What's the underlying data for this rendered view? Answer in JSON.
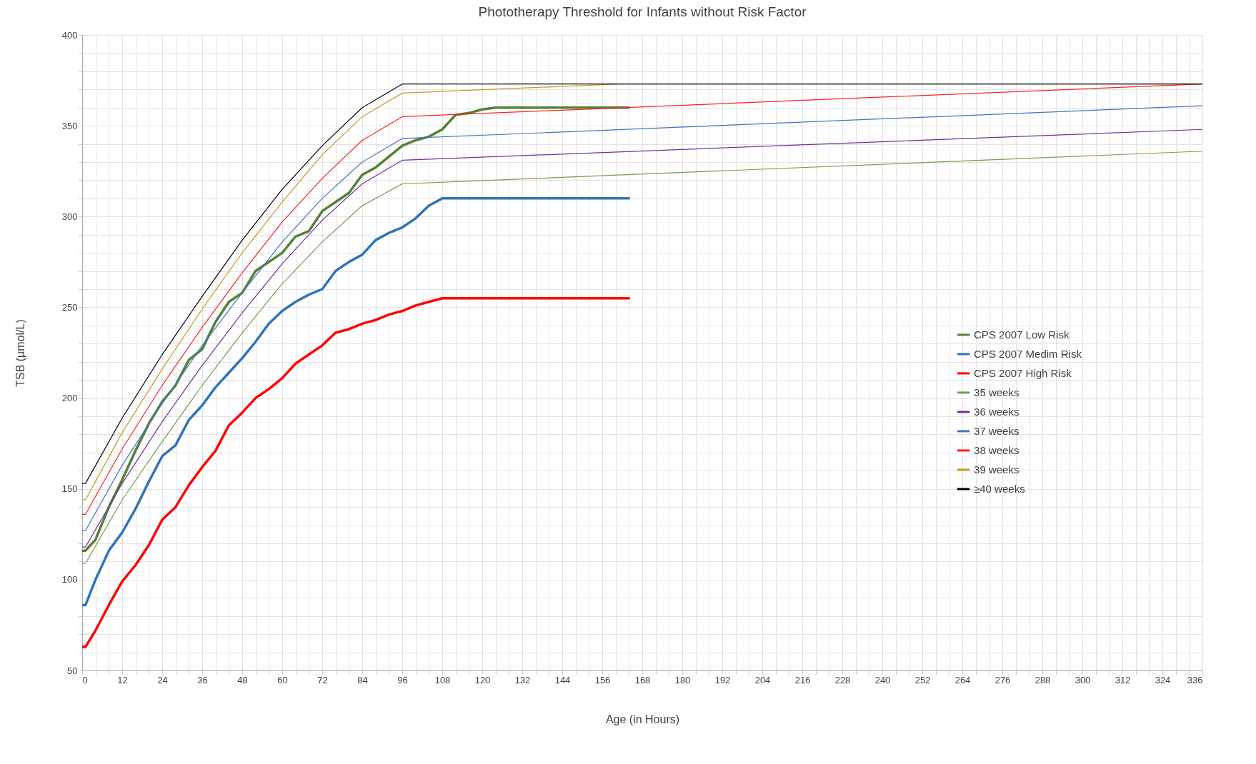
{
  "chart_data": {
    "type": "line",
    "title": "Phototherapy Threshold for Infants without Risk Factor",
    "xlabel": "Age (in Hours)",
    "ylabel": "TSB (µmol/L)",
    "grid": true,
    "legend": "right",
    "xlim": [
      0,
      336
    ],
    "ylim": [
      50,
      400
    ],
    "xticks": [
      0,
      {
        "value": 4,
        "label": null
      },
      {
        "value": 8,
        "label": null
      },
      12,
      {
        "value": 16,
        "label": null
      },
      {
        "value": 20,
        "label": null
      },
      24,
      {
        "value": 28,
        "label": null
      },
      {
        "value": 32,
        "label": null
      },
      36,
      {
        "value": 40,
        "label": null
      },
      {
        "value": 44,
        "label": null
      },
      48,
      {
        "value": 52,
        "label": null
      },
      {
        "value": 56,
        "label": null
      },
      60,
      {
        "value": 64,
        "label": null
      },
      {
        "value": 68,
        "label": null
      },
      72,
      {
        "value": 76,
        "label": null
      },
      {
        "value": 80,
        "label": null
      },
      84,
      {
        "value": 88,
        "label": null
      },
      {
        "value": 92,
        "label": null
      },
      96,
      {
        "value": 100,
        "label": null
      },
      {
        "value": 104,
        "label": null
      },
      108,
      {
        "value": 112,
        "label": null
      },
      {
        "value": 116,
        "label": null
      },
      120,
      {
        "value": 124,
        "label": null
      },
      {
        "value": 128,
        "label": null
      },
      132,
      {
        "value": 136,
        "label": null
      },
      {
        "value": 140,
        "label": null
      },
      144,
      {
        "value": 148,
        "label": null
      },
      {
        "value": 152,
        "label": null
      },
      156,
      {
        "value": 160,
        "label": null
      },
      {
        "value": 164,
        "label": null
      },
      168,
      {
        "value": 172,
        "label": null
      },
      {
        "value": 176,
        "label": null
      },
      180,
      {
        "value": 184,
        "label": null
      },
      {
        "value": 188,
        "label": null
      },
      192,
      {
        "value": 196,
        "label": null
      },
      {
        "value": 200,
        "label": null
      },
      204,
      {
        "value": 208,
        "label": null
      },
      {
        "value": 212,
        "label": null
      },
      216,
      {
        "value": 220,
        "label": null
      },
      {
        "value": 224,
        "label": null
      },
      228,
      {
        "value": 232,
        "label": null
      },
      {
        "value": 236,
        "label": null
      },
      240,
      {
        "value": 244,
        "label": null
      },
      {
        "value": 248,
        "label": null
      },
      252,
      {
        "value": 256,
        "label": null
      },
      {
        "value": 260,
        "label": null
      },
      264,
      {
        "value": 268,
        "label": null
      },
      {
        "value": 272,
        "label": null
      },
      276,
      {
        "value": 280,
        "label": null
      },
      {
        "value": 284,
        "label": null
      },
      288,
      {
        "value": 292,
        "label": null
      },
      {
        "value": 296,
        "label": null
      },
      300,
      {
        "value": 304,
        "label": null
      },
      {
        "value": 308,
        "label": null
      },
      312,
      {
        "value": 316,
        "label": null
      },
      {
        "value": 320,
        "label": null
      },
      324,
      {
        "value": 328,
        "label": null
      },
      {
        "value": 332,
        "label": null
      },
      336
    ],
    "yticks": [
      50,
      {
        "value": 60,
        "label": null
      },
      {
        "value": 70,
        "label": null
      },
      {
        "value": 80,
        "label": null
      },
      {
        "value": 90,
        "label": null
      },
      100,
      {
        "value": 110,
        "label": null
      },
      {
        "value": 120,
        "label": null
      },
      {
        "value": 130,
        "label": null
      },
      {
        "value": 140,
        "label": null
      },
      150,
      {
        "value": 160,
        "label": null
      },
      {
        "value": 170,
        "label": null
      },
      {
        "value": 180,
        "label": null
      },
      {
        "value": 190,
        "label": null
      },
      200,
      {
        "value": 210,
        "label": null
      },
      {
        "value": 220,
        "label": null
      },
      {
        "value": 230,
        "label": null
      },
      {
        "value": 240,
        "label": null
      },
      250,
      {
        "value": 260,
        "label": null
      },
      {
        "value": 270,
        "label": null
      },
      {
        "value": 280,
        "label": null
      },
      {
        "value": 290,
        "label": null
      },
      300,
      {
        "value": 310,
        "label": null
      },
      {
        "value": 320,
        "label": null
      },
      {
        "value": 330,
        "label": null
      },
      {
        "value": 340,
        "label": null
      },
      350,
      {
        "value": 360,
        "label": null
      },
      {
        "value": 370,
        "label": null
      },
      {
        "value": 380,
        "label": null
      },
      {
        "value": 390,
        "label": null
      },
      400
    ],
    "series": [
      {
        "name": "CPS 2007 Low Risk",
        "color": "#548235",
        "x": [
          0,
          1,
          4,
          8,
          12,
          16,
          20,
          24,
          28,
          32,
          36,
          40,
          44,
          48,
          52,
          56,
          60,
          64,
          68,
          72,
          76,
          80,
          84,
          88,
          92,
          96,
          100,
          104,
          108,
          112,
          116,
          120,
          124,
          164
        ],
        "values": [
          116,
          116,
          122,
          140,
          155,
          171,
          186,
          198,
          207,
          221,
          227,
          242,
          253,
          258,
          270,
          275,
          280,
          289,
          292,
          303,
          308,
          313,
          323,
          327,
          333,
          339,
          342,
          344,
          348,
          356,
          357,
          359,
          360,
          360
        ]
      },
      {
        "name": "CPS 2007 Medim Risk",
        "color": "#2e75b6",
        "x": [
          0,
          1,
          4,
          8,
          12,
          16,
          20,
          24,
          28,
          32,
          36,
          40,
          44,
          48,
          52,
          56,
          60,
          64,
          68,
          72,
          76,
          80,
          84,
          88,
          92,
          96,
          100,
          104,
          108,
          164
        ],
        "values": [
          86,
          86,
          100,
          116,
          126,
          139,
          154,
          168,
          174,
          188,
          196,
          206,
          214,
          222,
          231,
          241,
          248,
          253,
          257,
          260,
          270,
          275,
          279,
          287,
          291,
          294,
          299,
          306,
          310,
          310
        ]
      },
      {
        "name": "CPS 2007 High Risk",
        "color": "#ff0000",
        "x": [
          0,
          1,
          4,
          8,
          12,
          16,
          20,
          24,
          28,
          32,
          36,
          40,
          44,
          48,
          52,
          56,
          60,
          64,
          68,
          72,
          76,
          80,
          84,
          88,
          92,
          96,
          100,
          104,
          108,
          164
        ],
        "values": [
          63,
          63,
          72,
          86,
          99,
          108,
          119,
          133,
          140,
          152,
          162,
          171,
          185,
          192,
          200,
          205,
          211,
          219,
          224,
          229,
          236,
          238,
          241,
          243,
          246,
          248,
          251,
          253,
          255,
          255
        ]
      },
      {
        "name": "35 weeks",
        "color": "#70a04a",
        "x": [
          0,
          1,
          12,
          24,
          36,
          48,
          60,
          72,
          84,
          96,
          336
        ],
        "values": [
          109,
          109,
          144,
          176,
          207,
          236,
          263,
          286,
          306,
          318,
          336
        ]
      },
      {
        "name": "36 weeks",
        "color": "#7030a0",
        "x": [
          0,
          1,
          12,
          24,
          36,
          48,
          60,
          72,
          84,
          96,
          336
        ],
        "values": [
          118,
          118,
          153,
          187,
          218,
          247,
          274,
          298,
          318,
          331,
          348
        ]
      },
      {
        "name": "37 weeks",
        "color": "#4472c4",
        "x": [
          0,
          1,
          12,
          24,
          36,
          48,
          60,
          72,
          84,
          96,
          336
        ],
        "values": [
          127,
          127,
          163,
          197,
          229,
          258,
          286,
          310,
          330,
          343,
          361
        ]
      },
      {
        "name": "38 weeks",
        "color": "#ff2020",
        "x": [
          0,
          1,
          12,
          24,
          36,
          48,
          60,
          72,
          84,
          96,
          336
        ],
        "values": [
          136,
          136,
          172,
          207,
          239,
          269,
          297,
          321,
          342,
          355,
          373
        ]
      },
      {
        "name": "39 weeks",
        "color": "#c99a1e",
        "x": [
          0,
          1,
          12,
          24,
          36,
          48,
          60,
          72,
          84,
          96,
          161,
          336
        ],
        "values": [
          144,
          144,
          181,
          216,
          249,
          280,
          308,
          334,
          355,
          368,
          373,
          373
        ]
      },
      {
        "name": "≥40 weeks",
        "color": "#000000",
        "x": [
          0,
          1,
          12,
          24,
          36,
          48,
          60,
          72,
          84,
          96,
          336
        ],
        "values": [
          153,
          153,
          189,
          224,
          256,
          287,
          315,
          339,
          360,
          373,
          373
        ]
      }
    ]
  }
}
